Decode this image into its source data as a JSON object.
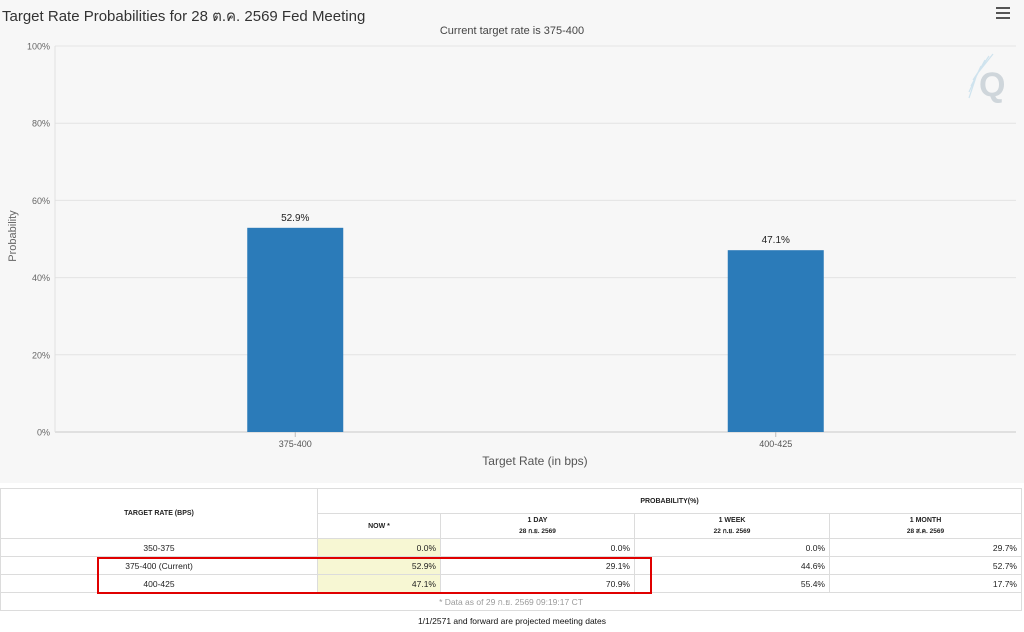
{
  "header": {
    "title": "Target Rate Probabilities for 28 ต.ค. 2569 Fed Meeting",
    "subtitle": "Current target rate is 375-400"
  },
  "icons": {
    "menu": "hamburger-menu-icon",
    "watermark": "q-logo-icon"
  },
  "colors": {
    "bar": "#2b7bb9",
    "highlight": "#e00000",
    "now_column": "#f7f7d3"
  },
  "chart_data": {
    "type": "bar",
    "title": "Target Rate Probabilities for 28 ต.ค. 2569 Fed Meeting",
    "subtitle": "Current target rate is 375-400",
    "categories": [
      "375-400",
      "400-425"
    ],
    "values": [
      52.9,
      47.1
    ],
    "data_labels": [
      "52.9%",
      "47.1%"
    ],
    "xlabel": "Target Rate (in bps)",
    "ylabel": "Probability",
    "ylim": [
      0,
      100
    ],
    "yticks": [
      "0%",
      "20%",
      "40%",
      "60%",
      "80%",
      "100%"
    ],
    "grid": true
  },
  "table": {
    "rate_header": "TARGET RATE (BPS)",
    "prob_header": "PROBABILITY(%)",
    "columns": [
      {
        "label": "NOW *",
        "sub": ""
      },
      {
        "label": "1 DAY",
        "sub": "28 ก.ย. 2569"
      },
      {
        "label": "1 WEEK",
        "sub": "22 ก.ย. 2569"
      },
      {
        "label": "1 MONTH",
        "sub": "28 ส.ค. 2569"
      }
    ],
    "rows": [
      {
        "rate": "350-375",
        "now": "0.0%",
        "day": "0.0%",
        "week": "0.0%",
        "month": "29.7%"
      },
      {
        "rate": "375-400 (Current)",
        "now": "52.9%",
        "day": "29.1%",
        "week": "44.6%",
        "month": "52.7%"
      },
      {
        "rate": "400-425",
        "now": "47.1%",
        "day": "70.9%",
        "week": "55.4%",
        "month": "17.7%"
      }
    ],
    "note": "* Data as of 29 ก.ย. 2569 09:19:17 CT"
  },
  "footer": "1/1/2571 and forward are projected meeting dates"
}
